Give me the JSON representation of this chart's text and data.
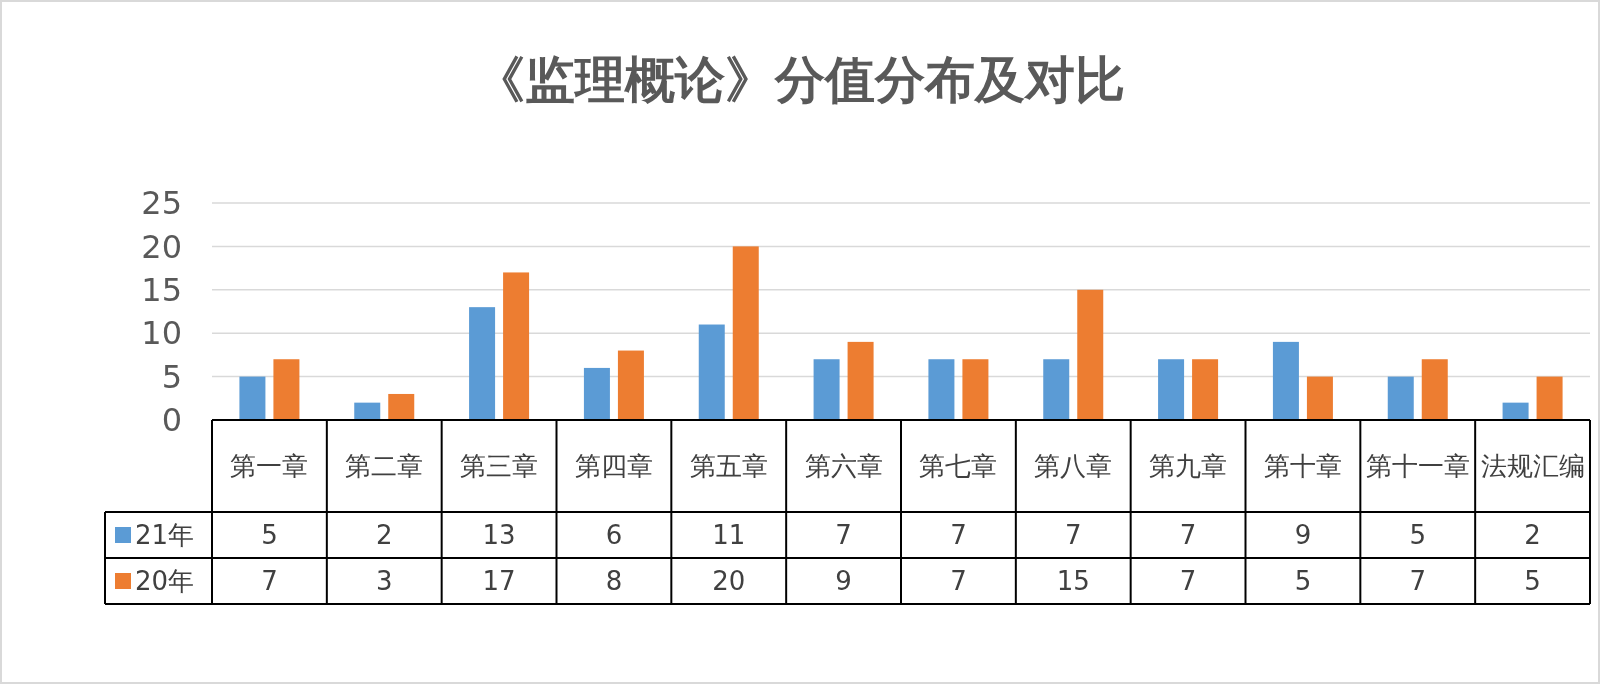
{
  "chart_data": {
    "type": "bar",
    "title": "《监理概论》分值分布及对比",
    "categories": [
      "第一章",
      "第二章",
      "第三章",
      "第四章",
      "第五章",
      "第六章",
      "第七章",
      "第八章",
      "第九章",
      "第十章",
      "第十一章",
      "法规汇编"
    ],
    "series": [
      {
        "name": "21年",
        "color": "#5b9bd5",
        "values": [
          5,
          2,
          13,
          6,
          11,
          7,
          7,
          7,
          7,
          9,
          5,
          2
        ]
      },
      {
        "name": "20年",
        "color": "#ed7d31",
        "values": [
          7,
          3,
          17,
          8,
          20,
          9,
          7,
          15,
          7,
          5,
          7,
          5
        ]
      }
    ],
    "ylim": [
      0,
      25
    ],
    "yticks": [
      0,
      5,
      10,
      15,
      20,
      25
    ],
    "grid": "y",
    "legend": "bottom",
    "data_labels": true
  }
}
